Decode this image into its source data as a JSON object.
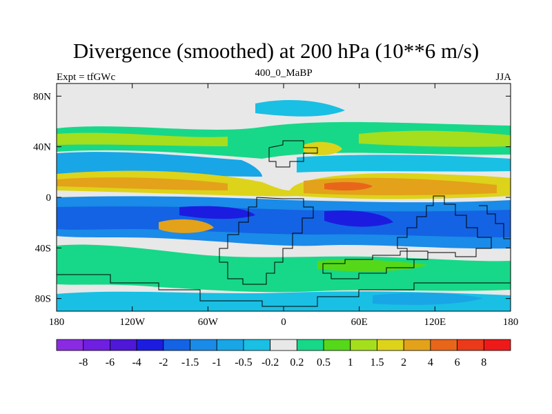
{
  "chart_data": {
    "type": "heatmap",
    "title": "Divergence (smoothed) at 200 hPa (10**6 m/s)",
    "left_string": "Expt = tfGWc",
    "center_string": "400_0_MaBP",
    "right_string": "JJA",
    "x_ticks": [
      "180",
      "120W",
      "60W",
      "0",
      "60E",
      "120E",
      "180"
    ],
    "x_tick_values": [
      -180,
      -120,
      -60,
      0,
      60,
      120,
      180
    ],
    "y_ticks": [
      "80N",
      "40N",
      "0",
      "40S",
      "80S"
    ],
    "y_tick_values": [
      80,
      40,
      0,
      -40,
      -80
    ],
    "xlim": [
      -180,
      180
    ],
    "ylim": [
      -90,
      90
    ],
    "colorbar": {
      "labels": [
        "-8",
        "-6",
        "-4",
        "-2",
        "-1.5",
        "-1",
        "-0.5",
        "-0.2",
        "0.2",
        "0.5",
        "1",
        "1.5",
        "2",
        "4",
        "6",
        "8"
      ],
      "colors": [
        "#8a2be2",
        "#6f1fe0",
        "#4f17d8",
        "#1c1ce0",
        "#1463e4",
        "#1a8be8",
        "#18a6e6",
        "#1abfe4",
        "#e8e8e8",
        "#17d888",
        "#55d81a",
        "#a5de1c",
        "#ddd31a",
        "#e3a21a",
        "#e8661a",
        "#ea3a1a",
        "#ee1a1a"
      ]
    },
    "fields": [
      {
        "lat": 48,
        "width": 12,
        "value": 1.2,
        "direction": "positive"
      },
      {
        "lat": 10,
        "width": 14,
        "value": 4,
        "direction": "positive"
      },
      {
        "lat": -8,
        "width": 10,
        "value": -1.5,
        "direction": "negative"
      },
      {
        "lat": -28,
        "width": 14,
        "value": -2,
        "direction": "negative"
      },
      {
        "lat": -55,
        "width": 14,
        "value": 0.8,
        "direction": "positive"
      }
    ]
  }
}
